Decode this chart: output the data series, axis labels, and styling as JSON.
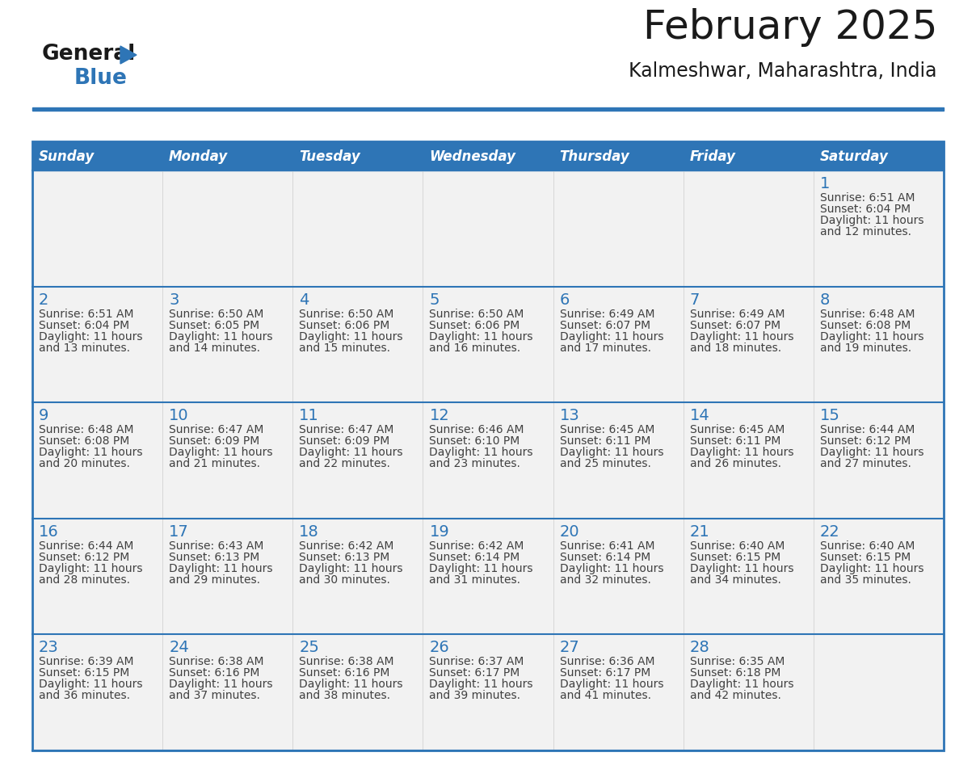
{
  "title": "February 2025",
  "subtitle": "Kalmeshwar, Maharashtra, India",
  "days_of_week": [
    "Sunday",
    "Monday",
    "Tuesday",
    "Wednesday",
    "Thursday",
    "Friday",
    "Saturday"
  ],
  "header_bg": "#2E75B6",
  "header_text": "#FFFFFF",
  "day_number_color": "#2E75B6",
  "cell_text_color": "#404040",
  "row_bg": "#F2F2F2",
  "border_color": "#2E75B6",
  "title_color": "#1a1a1a",
  "subtitle_color": "#1a1a1a",
  "logo_general_color": "#1a1a1a",
  "logo_blue_color": "#2E75B6",
  "logo_triangle_color": "#2E75B6",
  "calendar_data": [
    [
      null,
      null,
      null,
      null,
      null,
      null,
      {
        "day": "1",
        "sunrise": "6:51 AM",
        "sunset": "6:04 PM",
        "daylight_line1": "Daylight: 11 hours",
        "daylight_line2": "and 12 minutes."
      }
    ],
    [
      {
        "day": "2",
        "sunrise": "6:51 AM",
        "sunset": "6:04 PM",
        "daylight_line1": "Daylight: 11 hours",
        "daylight_line2": "and 13 minutes."
      },
      {
        "day": "3",
        "sunrise": "6:50 AM",
        "sunset": "6:05 PM",
        "daylight_line1": "Daylight: 11 hours",
        "daylight_line2": "and 14 minutes."
      },
      {
        "day": "4",
        "sunrise": "6:50 AM",
        "sunset": "6:06 PM",
        "daylight_line1": "Daylight: 11 hours",
        "daylight_line2": "and 15 minutes."
      },
      {
        "day": "5",
        "sunrise": "6:50 AM",
        "sunset": "6:06 PM",
        "daylight_line1": "Daylight: 11 hours",
        "daylight_line2": "and 16 minutes."
      },
      {
        "day": "6",
        "sunrise": "6:49 AM",
        "sunset": "6:07 PM",
        "daylight_line1": "Daylight: 11 hours",
        "daylight_line2": "and 17 minutes."
      },
      {
        "day": "7",
        "sunrise": "6:49 AM",
        "sunset": "6:07 PM",
        "daylight_line1": "Daylight: 11 hours",
        "daylight_line2": "and 18 minutes."
      },
      {
        "day": "8",
        "sunrise": "6:48 AM",
        "sunset": "6:08 PM",
        "daylight_line1": "Daylight: 11 hours",
        "daylight_line2": "and 19 minutes."
      }
    ],
    [
      {
        "day": "9",
        "sunrise": "6:48 AM",
        "sunset": "6:08 PM",
        "daylight_line1": "Daylight: 11 hours",
        "daylight_line2": "and 20 minutes."
      },
      {
        "day": "10",
        "sunrise": "6:47 AM",
        "sunset": "6:09 PM",
        "daylight_line1": "Daylight: 11 hours",
        "daylight_line2": "and 21 minutes."
      },
      {
        "day": "11",
        "sunrise": "6:47 AM",
        "sunset": "6:09 PM",
        "daylight_line1": "Daylight: 11 hours",
        "daylight_line2": "and 22 minutes."
      },
      {
        "day": "12",
        "sunrise": "6:46 AM",
        "sunset": "6:10 PM",
        "daylight_line1": "Daylight: 11 hours",
        "daylight_line2": "and 23 minutes."
      },
      {
        "day": "13",
        "sunrise": "6:45 AM",
        "sunset": "6:11 PM",
        "daylight_line1": "Daylight: 11 hours",
        "daylight_line2": "and 25 minutes."
      },
      {
        "day": "14",
        "sunrise": "6:45 AM",
        "sunset": "6:11 PM",
        "daylight_line1": "Daylight: 11 hours",
        "daylight_line2": "and 26 minutes."
      },
      {
        "day": "15",
        "sunrise": "6:44 AM",
        "sunset": "6:12 PM",
        "daylight_line1": "Daylight: 11 hours",
        "daylight_line2": "and 27 minutes."
      }
    ],
    [
      {
        "day": "16",
        "sunrise": "6:44 AM",
        "sunset": "6:12 PM",
        "daylight_line1": "Daylight: 11 hours",
        "daylight_line2": "and 28 minutes."
      },
      {
        "day": "17",
        "sunrise": "6:43 AM",
        "sunset": "6:13 PM",
        "daylight_line1": "Daylight: 11 hours",
        "daylight_line2": "and 29 minutes."
      },
      {
        "day": "18",
        "sunrise": "6:42 AM",
        "sunset": "6:13 PM",
        "daylight_line1": "Daylight: 11 hours",
        "daylight_line2": "and 30 minutes."
      },
      {
        "day": "19",
        "sunrise": "6:42 AM",
        "sunset": "6:14 PM",
        "daylight_line1": "Daylight: 11 hours",
        "daylight_line2": "and 31 minutes."
      },
      {
        "day": "20",
        "sunrise": "6:41 AM",
        "sunset": "6:14 PM",
        "daylight_line1": "Daylight: 11 hours",
        "daylight_line2": "and 32 minutes."
      },
      {
        "day": "21",
        "sunrise": "6:40 AM",
        "sunset": "6:15 PM",
        "daylight_line1": "Daylight: 11 hours",
        "daylight_line2": "and 34 minutes."
      },
      {
        "day": "22",
        "sunrise": "6:40 AM",
        "sunset": "6:15 PM",
        "daylight_line1": "Daylight: 11 hours",
        "daylight_line2": "and 35 minutes."
      }
    ],
    [
      {
        "day": "23",
        "sunrise": "6:39 AM",
        "sunset": "6:15 PM",
        "daylight_line1": "Daylight: 11 hours",
        "daylight_line2": "and 36 minutes."
      },
      {
        "day": "24",
        "sunrise": "6:38 AM",
        "sunset": "6:16 PM",
        "daylight_line1": "Daylight: 11 hours",
        "daylight_line2": "and 37 minutes."
      },
      {
        "day": "25",
        "sunrise": "6:38 AM",
        "sunset": "6:16 PM",
        "daylight_line1": "Daylight: 11 hours",
        "daylight_line2": "and 38 minutes."
      },
      {
        "day": "26",
        "sunrise": "6:37 AM",
        "sunset": "6:17 PM",
        "daylight_line1": "Daylight: 11 hours",
        "daylight_line2": "and 39 minutes."
      },
      {
        "day": "27",
        "sunrise": "6:36 AM",
        "sunset": "6:17 PM",
        "daylight_line1": "Daylight: 11 hours",
        "daylight_line2": "and 41 minutes."
      },
      {
        "day": "28",
        "sunrise": "6:35 AM",
        "sunset": "6:18 PM",
        "daylight_line1": "Daylight: 11 hours",
        "daylight_line2": "and 42 minutes."
      },
      null
    ]
  ]
}
